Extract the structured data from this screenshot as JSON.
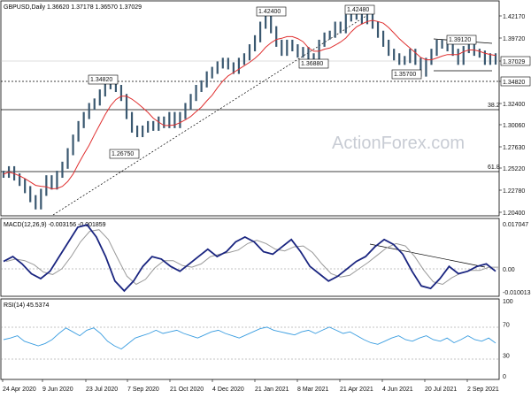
{
  "chart_data": [
    {
      "type": "candlestick",
      "title": "GBPUSD,Daily",
      "ohlc_label": "1.36620 1.37178 1.36570 1.37029",
      "y_ticks": [
        "1.42170",
        "1.39720",
        "1.37029",
        "1.34820",
        "1.32400",
        "1.30060",
        "1.27630",
        "1.25220",
        "1.22780",
        "1.20400"
      ],
      "current_price": "1.37029",
      "support_label": "1.34820",
      "fib_levels": [
        {
          "label": "38.2",
          "value": 1.3305
        },
        {
          "label": "61.8",
          "value": 1.2545
        }
      ],
      "annotations": [
        {
          "text": "1.42400",
          "value": 1.424
        },
        {
          "text": "1.42480",
          "value": 1.4248
        },
        {
          "text": "1.39120",
          "value": 1.3912
        },
        {
          "text": "1.36880",
          "value": 1.3688
        },
        {
          "text": "1.35700",
          "value": 1.357
        },
        {
          "text": "1.34820",
          "value": 1.3482
        },
        {
          "text": "1.26750",
          "value": 1.2675
        }
      ],
      "watermark": "ActionForex.com",
      "series": [
        {
          "values": [
            1.245,
            1.25,
            1.242,
            1.236,
            1.228,
            1.218,
            1.21,
            1.225,
            1.24,
            1.232,
            1.245,
            1.255,
            1.27,
            1.285,
            1.3,
            1.31,
            1.32,
            1.325,
            1.335,
            1.343,
            1.348,
            1.34,
            1.33,
            1.31,
            1.295,
            1.29,
            1.295,
            1.3,
            1.297,
            1.305,
            1.3,
            1.31,
            1.3,
            1.31,
            1.32,
            1.33,
            1.34,
            1.345,
            1.355,
            1.36,
            1.366,
            1.37,
            1.365,
            1.36,
            1.37,
            1.375,
            1.385,
            1.395,
            1.41,
            1.424,
            1.405,
            1.39,
            1.38,
            1.39,
            1.385,
            1.378,
            1.382,
            1.37,
            1.375,
            1.39,
            1.398,
            1.4,
            1.41,
            1.405,
            1.418,
            1.4248,
            1.42,
            1.415,
            1.42,
            1.41,
            1.4,
            1.39,
            1.38,
            1.375,
            1.37,
            1.372,
            1.38,
            1.37,
            1.357,
            1.37,
            1.38,
            1.39,
            1.388,
            1.385,
            1.38,
            1.37,
            1.383,
            1.385,
            1.38,
            1.378,
            1.37,
            1.375,
            1.37029
          ]
        }
      ]
    },
    {
      "type": "line",
      "title": "MACD(12,26,9) -0.003156 -0.001859",
      "y_ticks": [
        "0.017047",
        "0.00",
        "-0.010013"
      ],
      "series": [
        {
          "values": [
            0.002,
            0.004,
            0.001,
            -0.003,
            -0.005,
            -0.002,
            0.004,
            0.01,
            0.016,
            0.017,
            0.012,
            0.004,
            -0.006,
            -0.01,
            -0.006,
            0.0,
            0.004,
            0.003,
            0.0,
            -0.002,
            0.001,
            0.004,
            0.007,
            0.004,
            0.006,
            0.01,
            0.012,
            0.01,
            0.006,
            0.005,
            0.008,
            0.011,
            0.006,
            0.0,
            -0.003,
            -0.006,
            -0.004,
            -0.001,
            0.002,
            0.004,
            0.008,
            0.011,
            0.009,
            0.005,
            -0.002,
            -0.008,
            -0.009,
            -0.005,
            0.0,
            -0.003,
            -0.002,
            0.0,
            0.001,
            -0.002
          ]
        }
      ]
    },
    {
      "type": "line",
      "title": "RSI(14) 45.5374",
      "y_ticks": [
        "100",
        "70",
        "30",
        "0"
      ],
      "series": [
        {
          "values": [
            50,
            52,
            55,
            48,
            45,
            42,
            45,
            50,
            58,
            65,
            60,
            55,
            62,
            65,
            58,
            48,
            42,
            38,
            45,
            52,
            55,
            58,
            62,
            58,
            60,
            62,
            58,
            55,
            52,
            56,
            60,
            62,
            58,
            55,
            52,
            56,
            60,
            64,
            66,
            62,
            60,
            58,
            56,
            60,
            62,
            58,
            62,
            66,
            62,
            58,
            60,
            55,
            50,
            46,
            44,
            48,
            52,
            55,
            50,
            48,
            52,
            55,
            50,
            48,
            52,
            46,
            50,
            55,
            50,
            48,
            52,
            45.5374
          ]
        }
      ]
    }
  ],
  "x_axis": [
    "24 Apr 2020",
    "9 Jun 2020",
    "23 Jul 2020",
    "7 Sep 2020",
    "21 Oct 2020",
    "4 Dec 2020",
    "21 Jan 2021",
    "8 Mar 2021",
    "21 Apr 2021",
    "4 Jun 2021",
    "20 Jul 2021",
    "2 Sep 2021"
  ]
}
